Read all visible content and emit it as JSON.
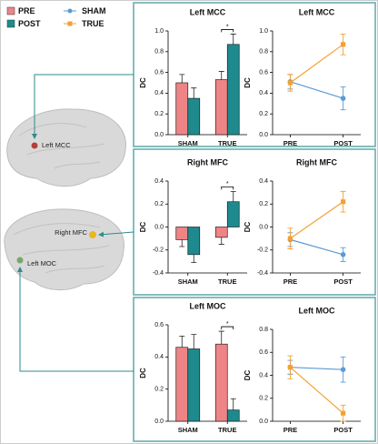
{
  "chart_data": [
    {
      "type": "bar",
      "title": "Left MCC",
      "y_label": "DC",
      "categories": [
        "SHAM",
        "TRUE"
      ],
      "series": [
        {
          "name": "PRE",
          "color": "#ef8486",
          "values": [
            0.5,
            0.53
          ],
          "errors": [
            0.08,
            0.08
          ]
        },
        {
          "name": "POST",
          "color": "#1f8a8e",
          "values": [
            0.35,
            0.87
          ],
          "errors": [
            0.1,
            0.1
          ]
        }
      ],
      "ylim": [
        0,
        1.0
      ],
      "yticks": [
        {
          "value": 0,
          "label": "0.0"
        },
        0.2,
        0.4,
        0.6,
        0.8,
        {
          "value": 1.0,
          "label": "1.0"
        }
      ],
      "annotation": "*"
    },
    {
      "type": "line",
      "title": "Left MCC",
      "y_label": "DC",
      "categories": [
        "PRE",
        "POST"
      ],
      "series": [
        {
          "name": "SHAM",
          "color": "#5b9bd5",
          "values": [
            0.51,
            0.35
          ],
          "errors": [
            0.07,
            0.11
          ]
        },
        {
          "name": "TRUE",
          "color": "#f5a032",
          "values": [
            0.5,
            0.87
          ],
          "errors": [
            0.08,
            0.1
          ]
        }
      ],
      "ylim": [
        0,
        1.0
      ],
      "yticks": [
        {
          "value": 0,
          "label": "0.0"
        },
        0.2,
        0.4,
        0.6,
        0.8,
        {
          "value": 1.0,
          "label": "1.0"
        }
      ]
    },
    {
      "type": "bar",
      "title": "Right MFC",
      "y_label": "DC",
      "categories": [
        "SHAM",
        "TRUE"
      ],
      "series": [
        {
          "name": "PRE",
          "color": "#ef8486",
          "values": [
            -0.11,
            -0.09
          ],
          "errors": [
            0.06,
            0.06
          ]
        },
        {
          "name": "POST",
          "color": "#1f8a8e",
          "values": [
            -0.24,
            0.22
          ],
          "errors": [
            0.07,
            0.09
          ]
        }
      ],
      "ylim": [
        -0.4,
        0.4
      ],
      "yticks": [
        -0.4,
        -0.2,
        {
          "value": 0,
          "label": "0.0"
        },
        0.2,
        0.4
      ],
      "annotation": "*"
    },
    {
      "type": "line",
      "title": "Right MFC",
      "y_label": "DC",
      "categories": [
        "PRE",
        "POST"
      ],
      "series": [
        {
          "name": "SHAM",
          "color": "#5b9bd5",
          "values": [
            -0.11,
            -0.24
          ],
          "errors": [
            0.06,
            0.06
          ]
        },
        {
          "name": "TRUE",
          "color": "#f5a032",
          "values": [
            -0.1,
            0.22
          ],
          "errors": [
            0.09,
            0.09
          ]
        }
      ],
      "ylim": [
        -0.4,
        0.4
      ],
      "yticks": [
        -0.4,
        -0.2,
        {
          "value": 0,
          "label": "0.0"
        },
        0.2,
        0.4
      ]
    },
    {
      "type": "bar",
      "title": "Left MOC",
      "y_label": "DC",
      "categories": [
        "SHAM",
        "TRUE"
      ],
      "series": [
        {
          "name": "PRE",
          "color": "#ef8486",
          "values": [
            0.46,
            0.48
          ],
          "errors": [
            0.07,
            0.08
          ]
        },
        {
          "name": "POST",
          "color": "#1f8a8e",
          "values": [
            0.45,
            0.07
          ],
          "errors": [
            0.09,
            0.07
          ]
        }
      ],
      "ylim": [
        0,
        0.6
      ],
      "yticks": [
        {
          "value": 0,
          "label": "0.0"
        },
        0.2,
        0.4,
        0.6
      ],
      "annotation": "*"
    },
    {
      "type": "line",
      "title": "Left MOC",
      "y_label": "DC",
      "categories": [
        "PRE",
        "POST"
      ],
      "series": [
        {
          "name": "SHAM",
          "color": "#5b9bd5",
          "values": [
            0.47,
            0.45
          ],
          "errors": [
            0.06,
            0.11
          ]
        },
        {
          "name": "TRUE",
          "color": "#f5a032",
          "values": [
            0.47,
            0.07
          ],
          "errors": [
            0.1,
            0.07
          ]
        }
      ],
      "ylim": [
        0,
        0.8
      ],
      "yticks": [
        {
          "value": 0,
          "label": "0.0"
        },
        0.2,
        0.4,
        0.6,
        0.8
      ]
    }
  ],
  "brain_labels": [
    "Left MCC",
    "Right MFC",
    "Left MOC"
  ]
}
